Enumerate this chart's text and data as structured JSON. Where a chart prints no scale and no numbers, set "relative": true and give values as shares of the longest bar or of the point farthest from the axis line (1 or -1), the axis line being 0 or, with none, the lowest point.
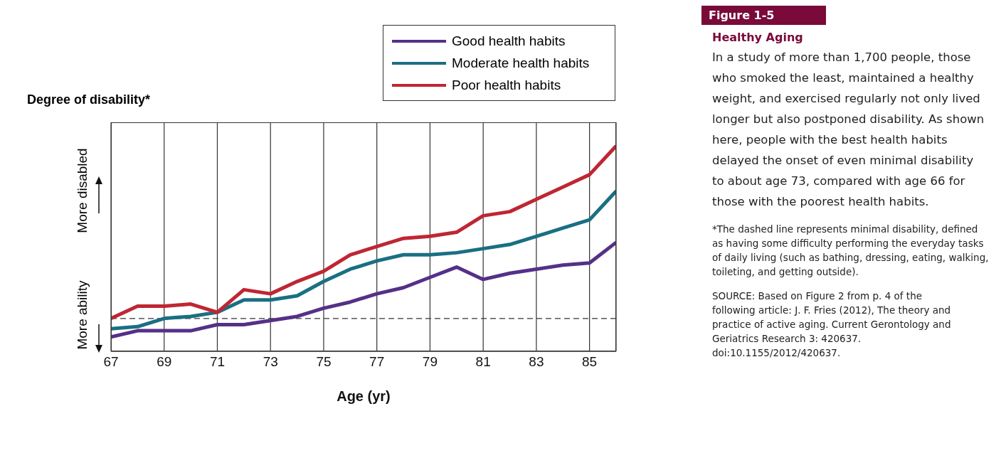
{
  "chart_data": {
    "type": "line",
    "title": "Figure 1-5",
    "subtitle": "Healthy Aging",
    "xlabel": "Age (yr)",
    "ylabel": "Degree of disability*",
    "relative": true,
    "legend": "top right",
    "grid": "x",
    "marker": "none",
    "line_style": "solid",
    "x": [
      67,
      68,
      69,
      70,
      71,
      72,
      73,
      74,
      75,
      76,
      77,
      78,
      79,
      80,
      81,
      82,
      83,
      84,
      85,
      86
    ],
    "xlim": [
      67,
      86
    ],
    "xticks": [
      67,
      69,
      71,
      73,
      75,
      77,
      79,
      81,
      83,
      85
    ],
    "series": [
      {
        "name": "Good health habits",
        "color": "#553087",
        "values": [
          0.07,
          0.1,
          0.1,
          0.1,
          0.13,
          0.13,
          0.15,
          0.17,
          0.21,
          0.24,
          0.28,
          0.31,
          0.36,
          0.41,
          0.35,
          0.38,
          0.4,
          0.42,
          0.43,
          0.53
        ]
      },
      {
        "name": "Moderate health habits",
        "color": "#1a6f82",
        "values": [
          0.11,
          0.12,
          0.16,
          0.17,
          0.19,
          0.25,
          0.25,
          0.27,
          0.34,
          0.4,
          0.44,
          0.47,
          0.47,
          0.48,
          0.5,
          0.52,
          0.56,
          0.6,
          0.64,
          0.78
        ]
      },
      {
        "name": "Poor health habits",
        "color": "#bf2633",
        "values": [
          0.16,
          0.22,
          0.22,
          0.23,
          0.19,
          0.3,
          0.28,
          0.34,
          0.39,
          0.47,
          0.51,
          0.55,
          0.56,
          0.58,
          0.66,
          0.68,
          0.74,
          0.8,
          0.86,
          1
        ]
      }
    ],
    "ref_lines": [
      {
        "axis": "y",
        "value": 0.16,
        "color": "#333333",
        "line_style": "dashed"
      }
    ],
    "annotations": [
      "More disabled",
      "More ability",
      "In a study of more than 1,700 people, those who smoked the least, maintained a healthy weight, and exercised regularly not only lived longer but also postponed disability. As shown here, people with the best health habits delayed the onset of even minimal disability to about age 73, compared with age 66 for those with the poorest health habits.",
      "*The dashed line represents minimal disability, defined as having some difficulty performing the everyday tasks of daily living (such as bathing, dressing, eating, walking, toileting, and getting outside).",
      "SOURCE: Based on Figure 2 from p. 4 of the following article: J. F. Fries (2012), The theory and practice of active aging. Current Gerontology and Geriatrics Research 3: 420637. doi:10.1155/2012/420637."
    ]
  }
}
